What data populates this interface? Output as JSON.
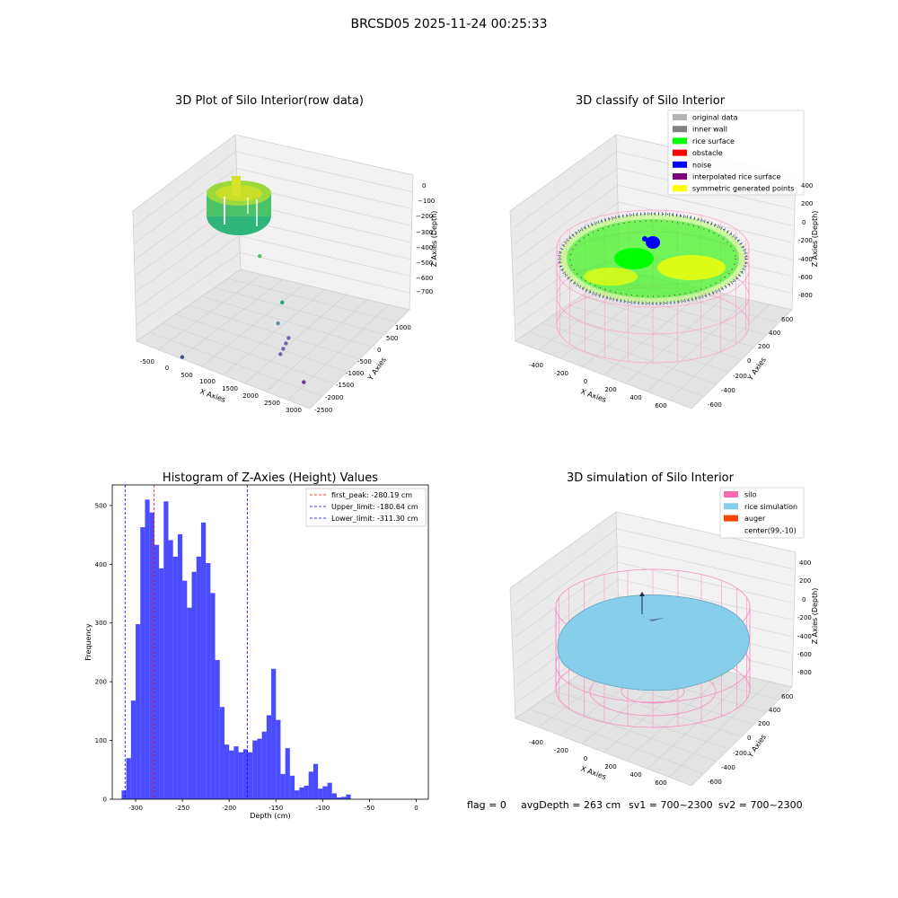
{
  "figure": {
    "title": "BRCSD05 2025-11-24 00:25:33",
    "footer": {
      "flag": "flag = 0",
      "avg_depth": "avgDepth = 263 cm",
      "sv1": "sv1 = 700~2300",
      "sv2": "sv2 = 700~2300"
    }
  },
  "chart_data": [
    {
      "type": "scatter",
      "projection": "3d",
      "title": "3D Plot of Silo Interior(row data)",
      "xlabel": "X Axies",
      "ylabel": "Y Axies",
      "zlabel": "Z Axies (Depth)",
      "x_ticks": [
        "-500",
        "0",
        "500",
        "1000",
        "1500",
        "2000",
        "2500",
        "3000"
      ],
      "y_ticks": [
        "-2500",
        "-2000",
        "-1500",
        "-1000",
        "-500",
        "0",
        "500",
        "1000"
      ],
      "z_ticks": [
        "0",
        "−100",
        "−200",
        "−300",
        "−400",
        "−500",
        "−600",
        "−700"
      ],
      "colormap": "viridis",
      "outliers": [
        {
          "x": 650,
          "y": -700,
          "z": -310,
          "color": "#52c26a"
        },
        {
          "x": 1550,
          "y": -1200,
          "z": -450,
          "color": "#26a387"
        },
        {
          "x": 1650,
          "y": -1500,
          "z": -530,
          "color": "#5e8fb0"
        },
        {
          "x": 2050,
          "y": -1700,
          "z": -560,
          "color": "#7a62a8"
        },
        {
          "x": 2050,
          "y": -1800,
          "z": -580,
          "color": "#7a62a8"
        },
        {
          "x": 2050,
          "y": -1900,
          "z": -600,
          "color": "#7a62a8"
        },
        {
          "x": 2050,
          "y": -2000,
          "z": -620,
          "color": "#7a62a8"
        },
        {
          "x": 2700,
          "y": -2100,
          "z": -720,
          "color": "#6b3c8e"
        },
        {
          "x": -200,
          "y": -2300,
          "z": -790,
          "color": "#3b528b"
        }
      ]
    },
    {
      "type": "scatter",
      "projection": "3d",
      "title": "3D classify of Silo Interior",
      "xlabel": "X Axies",
      "ylabel": "Y Axies",
      "zlabel": "Z Axies (Depth)",
      "x_ticks": [
        "-400",
        "-200",
        "0",
        "200",
        "400",
        "600"
      ],
      "y_ticks": [
        "-600",
        "-400",
        "-200",
        "0",
        "200",
        "400",
        "600"
      ],
      "z_ticks": [
        "200",
        "0",
        "-200",
        "-400",
        "-600",
        "-800"
      ],
      "z_tick_top": "400",
      "legend_position": "top-right",
      "legend": [
        {
          "label": "original data",
          "color": "#b3b3b3"
        },
        {
          "label": "inner wall",
          "color": "#808080"
        },
        {
          "label": "rice surface",
          "color": "#00ff00"
        },
        {
          "label": "obstacle",
          "color": "#ff0000"
        },
        {
          "label": "noise",
          "color": "#0000ff"
        },
        {
          "label": "interpolated rice surface",
          "color": "#800080"
        },
        {
          "label": "symmetric generated points",
          "color": "#ffff00"
        }
      ]
    },
    {
      "type": "bar",
      "title": "Histogram of Z-Axies (Height) Values",
      "xlabel": "Depth (cm)",
      "ylabel": "Frequency",
      "xlim": [
        -325,
        13
      ],
      "ylim": [
        0,
        535
      ],
      "x_ticks": [
        -300,
        -250,
        -200,
        -150,
        -100,
        -50,
        0
      ],
      "y_ticks": [
        0,
        100,
        200,
        300,
        400,
        500
      ],
      "bar_color": "#0000ff",
      "bin_start": -315,
      "bin_width": 5,
      "values": [
        15,
        70,
        168,
        298,
        463,
        510,
        488,
        433,
        393,
        507,
        441,
        413,
        451,
        372,
        326,
        387,
        413,
        471,
        402,
        351,
        237,
        157,
        93,
        83,
        90,
        80,
        85,
        80,
        100,
        103,
        115,
        143,
        222,
        135,
        43,
        87,
        40,
        15,
        20,
        23,
        47,
        60,
        18,
        22,
        28,
        10,
        3,
        4,
        8
      ],
      "legend_position": "top-right",
      "lines": [
        {
          "label": "first_peak: -280.19 cm",
          "x": -280.19,
          "color": "#ff0000",
          "style": "dashed"
        },
        {
          "label": "Upper_limit: -180.64 cm",
          "x": -180.64,
          "color": "#0000ff",
          "style": "dashed"
        },
        {
          "label": "Lower_limit: -311.30 cm",
          "x": -311.3,
          "color": "#0000ff",
          "style": "dashed"
        }
      ]
    },
    {
      "type": "surface",
      "projection": "3d",
      "title": "3D simulation of Silo Interior",
      "xlabel": "X Axies",
      "ylabel": "Y Axies",
      "zlabel": "Z Axies (Depth)",
      "x_ticks": [
        "-400",
        "-200",
        "0",
        "200",
        "400",
        "600"
      ],
      "y_ticks": [
        "-600",
        "-400",
        "-200",
        "0",
        "200",
        "400",
        "600"
      ],
      "z_ticks": [
        "400",
        "200",
        "0",
        "-200",
        "-400",
        "-600",
        "-800"
      ],
      "legend_position": "top-right",
      "legend": [
        {
          "label": "silo",
          "color": "#ff69b4"
        },
        {
          "label": "rice simulation",
          "color": "#87ceeb"
        },
        {
          "label": "auger",
          "color": "#ff4500"
        },
        {
          "label": "center(99,-10)",
          "color": "#ffffff"
        }
      ]
    }
  ]
}
